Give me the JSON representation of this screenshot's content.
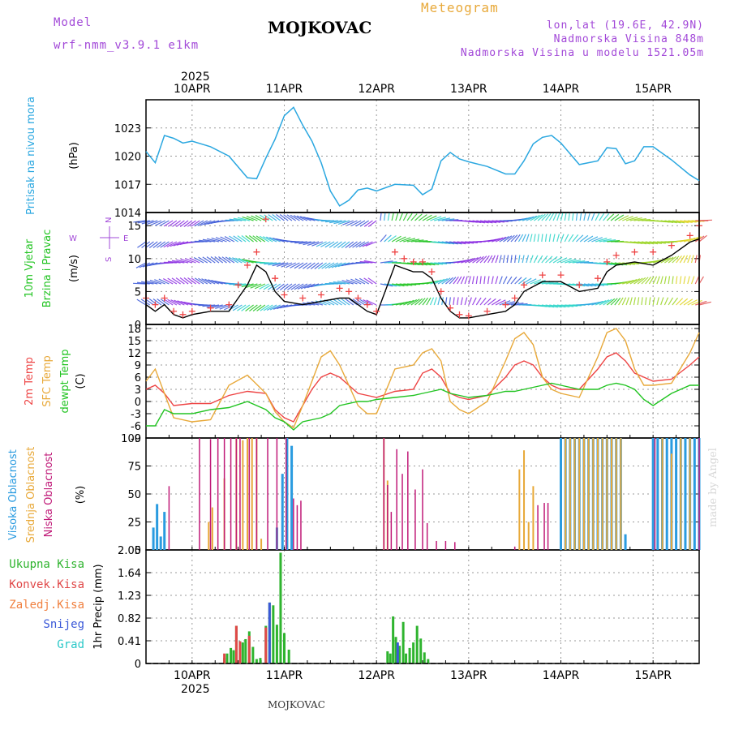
{
  "header": {
    "model_label": "Model",
    "model_name": "wrf-nmm_v3.9.1  e1km",
    "station": "MOJKOVAC",
    "meteogram": "Meteogram",
    "lonlat": "lon,lat (19.6E, 42.9N)",
    "altitude": "Nadmorska Visina 848m",
    "model_altitude": "Nadmorska Visina u modelu 1521.05m",
    "footer_station": "MOJKOVAC",
    "credit": "made by Angel"
  },
  "colors": {
    "pressure": "#2aa7e0",
    "wind_speed": "#000000",
    "gust": "#ee4444",
    "temp_2m": "#ee4444",
    "temp_sfc": "#e8a93a",
    "dewpt": "#22c422",
    "cloud_high": "#2a9be0",
    "cloud_mid": "#e8a93a",
    "cloud_low": "#c01a78",
    "precip_total": "#2fb42f",
    "precip_conv": "#e04848",
    "precip_freezing": "#f08040",
    "precip_snow": "#3a58d8",
    "precip_hail": "#2ac8c8"
  },
  "chart_data": [
    {
      "type": "line",
      "id": "pressure",
      "ylabel": [
        "Pritisak na nivou mora",
        "(hPa)"
      ],
      "ylim": [
        1014,
        1026
      ],
      "yticks": [
        1014,
        1017,
        1020,
        1023
      ],
      "top_year": "2025",
      "date_labels": [
        "10APR",
        "11APR",
        "12APR",
        "13APR",
        "14APR",
        "15APR"
      ],
      "x_start_day": 9.5,
      "x_end_day": 15.5,
      "series": [
        {
          "key": "pressure",
          "x": [
            9.5,
            9.6,
            9.7,
            9.8,
            9.9,
            10.0,
            10.2,
            10.4,
            10.6,
            10.7,
            10.8,
            10.9,
            11.0,
            11.1,
            11.2,
            11.3,
            11.4,
            11.5,
            11.6,
            11.7,
            11.8,
            11.9,
            12.0,
            12.2,
            12.4,
            12.5,
            12.6,
            12.7,
            12.8,
            12.9,
            13.0,
            13.2,
            13.4,
            13.5,
            13.6,
            13.7,
            13.8,
            13.9,
            14.0,
            14.2,
            14.4,
            14.5,
            14.6,
            14.7,
            14.8,
            14.9,
            15.0,
            15.2,
            15.4,
            15.5
          ],
          "y": [
            1020.5,
            1019.3,
            1022.2,
            1021.9,
            1021.4,
            1021.6,
            1021,
            1020,
            1017.7,
            1017.6,
            1019.8,
            1021.8,
            1024.3,
            1025.2,
            1023.3,
            1021.6,
            1019.3,
            1016.3,
            1014.7,
            1015.3,
            1016.4,
            1016.6,
            1016.3,
            1017,
            1016.9,
            1015.9,
            1016.5,
            1019.5,
            1020.4,
            1019.7,
            1019.4,
            1018.9,
            1018.1,
            1018.1,
            1019.5,
            1021.3,
            1022,
            1022.2,
            1021.4,
            1019.1,
            1019.5,
            1020.9,
            1020.8,
            1019.2,
            1019.5,
            1021,
            1021,
            1019.6,
            1018,
            1017.4
          ]
        }
      ]
    },
    {
      "type": "line",
      "id": "wind",
      "ylabel": [
        "10m Vjetar",
        "Brzina i Pravac",
        "(m/s)"
      ],
      "compass": [
        "N",
        "W",
        "E",
        "S"
      ],
      "ylim": [
        0,
        17
      ],
      "yticks": [
        0,
        5,
        10,
        15
      ],
      "series": [
        {
          "key": "wind_speed",
          "x": [
            9.5,
            9.6,
            9.7,
            9.8,
            9.9,
            10.0,
            10.2,
            10.4,
            10.5,
            10.6,
            10.7,
            10.8,
            10.9,
            11.0,
            11.2,
            11.4,
            11.6,
            11.7,
            11.8,
            11.9,
            12.0,
            12.2,
            12.3,
            12.4,
            12.5,
            12.6,
            12.7,
            12.8,
            12.9,
            13.0,
            13.2,
            13.4,
            13.5,
            13.6,
            13.8,
            14.0,
            14.2,
            14.4,
            14.5,
            14.6,
            14.8,
            15.0,
            15.2,
            15.4,
            15.5
          ],
          "y": [
            3,
            2,
            3,
            1.5,
            1,
            1.5,
            2,
            2,
            4,
            6,
            9,
            8,
            5,
            3.5,
            3,
            3.5,
            4,
            4,
            3,
            2,
            1.5,
            9,
            8.5,
            8,
            8,
            7,
            4,
            2,
            1,
            1,
            1.5,
            2,
            3,
            5,
            6.5,
            6.5,
            5,
            5.5,
            8,
            9,
            9.5,
            9,
            10.5,
            12.5,
            13
          ]
        },
        {
          "key": "gust",
          "x": [
            9.5,
            9.6,
            9.7,
            9.8,
            9.9,
            10.0,
            10.2,
            10.4,
            10.5,
            10.6,
            10.7,
            10.8,
            10.9,
            11.0,
            11.2,
            11.4,
            11.6,
            11.7,
            11.8,
            11.9,
            12.0,
            12.2,
            12.3,
            12.4,
            12.5,
            12.6,
            12.7,
            12.8,
            12.9,
            13.0,
            13.2,
            13.4,
            13.5,
            13.6,
            13.8,
            14.0,
            14.2,
            14.4,
            14.5,
            14.6,
            14.8,
            15.0,
            15.2,
            15.4,
            15.5
          ],
          "y": [
            4,
            3,
            4,
            2,
            1.5,
            2,
            2.5,
            3,
            6,
            9,
            11,
            16,
            7,
            4.5,
            4,
            4.5,
            5.5,
            5,
            4,
            3,
            2,
            11,
            10,
            9.5,
            9.5,
            8,
            5,
            2.5,
            1.5,
            1.3,
            2,
            3,
            4,
            6,
            7.5,
            7.5,
            6,
            7,
            9.5,
            10.5,
            11,
            11,
            12,
            13.5,
            15
          ]
        }
      ]
    },
    {
      "type": "line",
      "id": "temperature",
      "ylabel": [
        "2m Temp",
        "SFC Temp",
        "dewpt Temp",
        "(C)"
      ],
      "ylim": [
        -9,
        19
      ],
      "yticks": [
        -9,
        -6,
        -3,
        0,
        3,
        6,
        9,
        12,
        15,
        18
      ],
      "series": [
        {
          "key": "temp_2m",
          "x": [
            9.5,
            9.6,
            9.7,
            9.8,
            10.0,
            10.2,
            10.4,
            10.6,
            10.8,
            10.9,
            11.0,
            11.1,
            11.2,
            11.3,
            11.4,
            11.5,
            11.6,
            11.8,
            11.9,
            12.0,
            12.2,
            12.4,
            12.5,
            12.6,
            12.7,
            12.8,
            12.9,
            13.0,
            13.2,
            13.4,
            13.5,
            13.6,
            13.7,
            13.8,
            13.9,
            14.0,
            14.2,
            14.4,
            14.5,
            14.6,
            14.7,
            14.8,
            14.9,
            15.0,
            15.2,
            15.4,
            15.5
          ],
          "y": [
            3,
            4,
            2,
            -1,
            -0.5,
            -0.5,
            1.5,
            2.5,
            2,
            -2,
            -4,
            -5,
            -1,
            3,
            6,
            7,
            6,
            2,
            1.5,
            1,
            2.5,
            3,
            7,
            8,
            6,
            2,
            1,
            0.5,
            1.5,
            6,
            9,
            10,
            9,
            6,
            4,
            3,
            3,
            8,
            11,
            12,
            10,
            7,
            6,
            5,
            5.5,
            9,
            11
          ]
        },
        {
          "key": "temp_sfc",
          "x": [
            9.5,
            9.6,
            9.7,
            9.8,
            10.0,
            10.2,
            10.4,
            10.6,
            10.8,
            10.9,
            11.0,
            11.1,
            11.2,
            11.3,
            11.4,
            11.5,
            11.6,
            11.8,
            11.9,
            12.0,
            12.2,
            12.4,
            12.5,
            12.6,
            12.7,
            12.8,
            12.9,
            13.0,
            13.2,
            13.4,
            13.5,
            13.6,
            13.7,
            13.8,
            13.9,
            14.0,
            14.2,
            14.4,
            14.5,
            14.6,
            14.7,
            14.8,
            14.9,
            15.0,
            15.2,
            15.4,
            15.5
          ],
          "y": [
            5,
            8,
            2,
            -4,
            -5,
            -4.5,
            4,
            6.5,
            2,
            -2.5,
            -5,
            -6.5,
            -1,
            5,
            11,
            12.5,
            9,
            -1,
            -3,
            -3,
            8,
            9,
            12,
            13,
            10,
            0,
            -2,
            -3,
            0,
            10,
            15.5,
            17,
            14,
            6,
            3,
            2,
            1,
            11,
            17,
            18,
            15,
            8,
            4,
            4,
            4.5,
            12,
            17
          ]
        },
        {
          "key": "dewpt",
          "x": [
            9.5,
            9.6,
            9.7,
            9.8,
            10.0,
            10.2,
            10.4,
            10.6,
            10.8,
            10.9,
            11.0,
            11.1,
            11.2,
            11.3,
            11.4,
            11.5,
            11.6,
            11.8,
            11.9,
            12.0,
            12.2,
            12.4,
            12.5,
            12.6,
            12.7,
            12.8,
            12.9,
            13.0,
            13.2,
            13.4,
            13.5,
            13.6,
            13.7,
            13.8,
            13.9,
            14.0,
            14.2,
            14.4,
            14.5,
            14.6,
            14.7,
            14.8,
            14.9,
            15.0,
            15.2,
            15.4,
            15.5
          ],
          "y": [
            -6,
            -6,
            -2,
            -3,
            -3,
            -2,
            -1.5,
            0,
            -2,
            -4,
            -5,
            -7,
            -5,
            -4.5,
            -4,
            -3,
            -1,
            0,
            0,
            0.5,
            1,
            1.5,
            2,
            2.5,
            3,
            2,
            1.5,
            1,
            1.5,
            2.5,
            2.5,
            3,
            3.5,
            4,
            4.5,
            4,
            3,
            3,
            4,
            4.5,
            4,
            3,
            0.5,
            -1,
            2,
            4,
            4
          ]
        }
      ]
    },
    {
      "type": "bar",
      "id": "clouds",
      "ylabel": [
        "Visoka Oblacnost",
        "Srednja Oblacnost",
        "Niska Oblacnost",
        "(%)"
      ],
      "ylim": [
        0,
        100
      ],
      "yticks": [
        0,
        25,
        50,
        75,
        100
      ],
      "series": [
        {
          "key": "cloud_high",
          "x": [
            9.58,
            9.62,
            9.66,
            9.7,
            10.92,
            10.98,
            11.03,
            11.08,
            14.0,
            14.05,
            14.1,
            14.15,
            14.2,
            14.25,
            14.3,
            14.35,
            14.4,
            14.45,
            14.5,
            14.55,
            14.6,
            14.65,
            14.7,
            15.0,
            15.05,
            15.1,
            15.15,
            15.2,
            15.25,
            15.3,
            15.35,
            15.4,
            15.45,
            15.5
          ],
          "y": [
            20,
            41,
            12,
            34,
            20,
            68,
            100,
            93,
            100,
            100,
            100,
            100,
            100,
            100,
            100,
            100,
            100,
            100,
            100,
            100,
            100,
            100,
            14,
            100,
            100,
            100,
            100,
            100,
            100,
            100,
            100,
            100,
            100,
            100
          ]
        },
        {
          "key": "cloud_mid",
          "x": [
            10.18,
            10.22,
            10.35,
            10.48,
            10.55,
            10.6,
            10.65,
            10.7,
            10.75,
            12.08,
            12.12,
            13.55,
            13.6,
            13.65,
            13.7,
            14.05,
            14.1,
            14.15,
            14.2,
            14.25,
            14.3,
            14.35,
            14.4,
            14.45,
            14.5,
            14.55,
            14.6,
            14.65,
            15.1,
            15.2,
            15.3,
            15.4
          ],
          "y": [
            25,
            38,
            64,
            100,
            98,
            100,
            100,
            100,
            10,
            100,
            62,
            72,
            89,
            25,
            57,
            100,
            100,
            100,
            100,
            100,
            100,
            100,
            100,
            100,
            100,
            100,
            100,
            100,
            100,
            86,
            100,
            100
          ]
        },
        {
          "key": "cloud_low",
          "x": [
            9.75,
            10.08,
            10.2,
            10.28,
            10.35,
            10.42,
            10.48,
            10.52,
            10.62,
            10.7,
            10.82,
            10.92,
            11.02,
            11.1,
            11.14,
            11.18,
            12.08,
            12.12,
            12.16,
            12.22,
            12.28,
            12.34,
            12.42,
            12.5,
            12.55,
            12.65,
            12.75,
            12.85,
            13.5,
            13.75,
            13.82,
            13.86,
            15.02,
            15.5
          ],
          "y": [
            57,
            100,
            99,
            100,
            100,
            100,
            100,
            100,
            100,
            100,
            100,
            100,
            100,
            46,
            40,
            44,
            100,
            58,
            34,
            90,
            68,
            88,
            54,
            72,
            24,
            8,
            8,
            7,
            3,
            40,
            42,
            42,
            100,
            100
          ]
        }
      ]
    },
    {
      "type": "bar",
      "id": "precip",
      "ylabel": [
        "1hr Precip (mm)"
      ],
      "legend": [
        "Ukupna Kisa",
        "Konvek.Kisa",
        "Zaledj.Kisa",
        "Snijeg",
        "Grad"
      ],
      "ylim": [
        0,
        2.05
      ],
      "yticks": [
        0,
        0.41,
        0.82,
        1.23,
        1.64,
        2.05
      ],
      "ytick_labels": [
        "0",
        "0.41",
        "0.82",
        "1.23",
        "1.64",
        "2.05"
      ],
      "bottom_year": "2025",
      "series": [
        {
          "key": "precip_total",
          "x": [
            10.35,
            10.38,
            10.42,
            10.45,
            10.48,
            10.52,
            10.55,
            10.58,
            10.62,
            10.66,
            10.7,
            10.74,
            10.8,
            10.84,
            10.88,
            10.92,
            10.96,
            11.0,
            11.05,
            12.12,
            12.15,
            12.18,
            12.21,
            12.25,
            12.29,
            12.32,
            12.36,
            12.4,
            12.44,
            12.48,
            12.52,
            12.56
          ],
          "y": [
            0.1,
            0.18,
            0.28,
            0.24,
            0.68,
            0.4,
            0.38,
            0.44,
            0.58,
            0.3,
            0.08,
            0.1,
            0.68,
            1.1,
            1.05,
            0.7,
            2.0,
            0.55,
            0.25,
            0.22,
            0.18,
            0.85,
            0.48,
            0.32,
            0.75,
            0.18,
            0.28,
            0.38,
            0.68,
            0.45,
            0.2,
            0.08
          ]
        },
        {
          "key": "precip_conv",
          "x": [
            10.35,
            10.48,
            10.52,
            10.62,
            10.8
          ],
          "y": [
            0.18,
            0.68,
            0.4,
            0.5,
            0.65
          ]
        },
        {
          "key": "precip_snow",
          "x": [
            10.84,
            12.23
          ],
          "y": [
            1.1,
            0.38
          ]
        }
      ]
    }
  ]
}
